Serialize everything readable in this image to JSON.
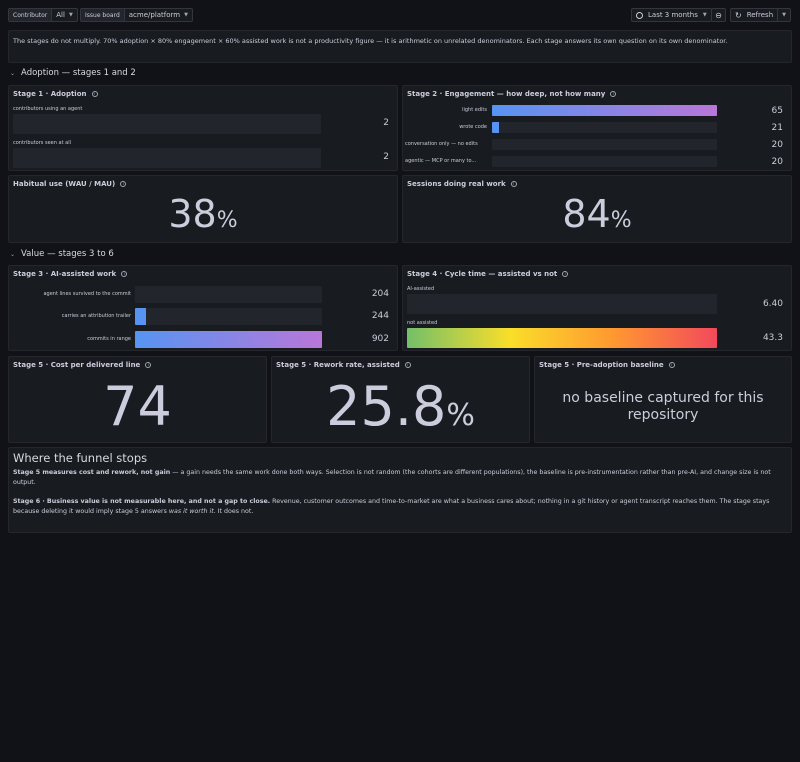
{
  "toolbar": {
    "contributor_label": "Contributor",
    "contributor_value": "All",
    "issue_board_label": "Issue board",
    "issue_board_value": "acme/platform",
    "time_range": "Last 3 months",
    "refresh_label": "Refresh"
  },
  "note": "The stages do not multiply. 70% adoption × 80% engagement × 60% assisted work is not a productivity figure — it is arithmetic on unrelated denominators. Each stage answers its own question on its own denominator.",
  "rows": {
    "adoption": "Adoption — stages 1 and 2",
    "value": "Value — stages 3 to 6"
  },
  "stage1": {
    "title": "Stage 1 · Adoption",
    "bars": [
      {
        "label": "contributors using an agent",
        "value": 2,
        "fill": 0.0
      },
      {
        "label": "contributors seen at all",
        "value": 2,
        "fill": 0.0
      }
    ]
  },
  "stage2": {
    "title": "Stage 2 · Engagement — how deep, not how many",
    "bars": [
      {
        "label": "light edits",
        "value": 65,
        "fill": 1.0
      },
      {
        "label": "wrote code",
        "value": 21,
        "fill": 0.03
      },
      {
        "label": "conversation only — no edits",
        "value": 20,
        "fill": 0.0
      },
      {
        "label": "agentic — MCP or many to...",
        "value": 20,
        "fill": 0.0
      }
    ]
  },
  "habitual": {
    "title": "Habitual use (WAU / MAU)",
    "value": "38",
    "unit": "%"
  },
  "sessions": {
    "title": "Sessions doing real work",
    "value": "84",
    "unit": "%"
  },
  "stage3": {
    "title": "Stage 3 · AI-assisted work",
    "bars": [
      {
        "label": "agent lines survived to the commit",
        "value": 204,
        "fill": 0.0
      },
      {
        "label": "carries an attribution trailer",
        "value": 244,
        "fill": 0.06
      },
      {
        "label": "commits in range",
        "value": 902,
        "fill": 1.0
      }
    ]
  },
  "stage4": {
    "title": "Stage 4 · Cycle time — assisted vs not",
    "bars": [
      {
        "label": "AI-assisted",
        "value": "6.40",
        "fill": 0.0
      },
      {
        "label": "not assisted",
        "value": "43.3",
        "fill": 1.0
      }
    ]
  },
  "cost": {
    "title": "Stage 5 · Cost per delivered line",
    "value": "74"
  },
  "rework": {
    "title": "Stage 5 · Rework rate, assisted",
    "value": "25.8",
    "unit": "%"
  },
  "baseline": {
    "title": "Stage 5 · Pre-adoption baseline",
    "value": "no baseline captured for this repository"
  },
  "funnel": {
    "heading": "Where the funnel stops",
    "p1_bold": "Stage 5 measures cost and rework, not gain",
    "p1_rest": " — a gain needs the same work done both ways. Selection is not random (the cohorts are different populations), the baseline is pre-instrumentation rather than pre-AI, and change size is not output.",
    "p2_bold": "Stage 6 · Business value is not measurable here, and not a gap to close.",
    "p2_rest": " Revenue, customer outcomes and time-to-market are what a business cares about; nothing in a git history or agent transcript reaches them. The stage stays because deleting it would imply stage 5 answers ",
    "p2_em": "was it worth it",
    "p2_end": ". It does not."
  },
  "colors": {
    "bg": "#111217",
    "panel": "#181b1f",
    "bar_gradient": "linear-gradient(90deg,#5794f2,#b877d9)",
    "heat_gradient": "linear-gradient(90deg,#73bf69,#fade2a,#ff9830,#f2495c)"
  },
  "icons": [
    "chevron-down-icon",
    "clock-icon",
    "zoom-out-icon",
    "refresh-icon",
    "info-icon"
  ]
}
